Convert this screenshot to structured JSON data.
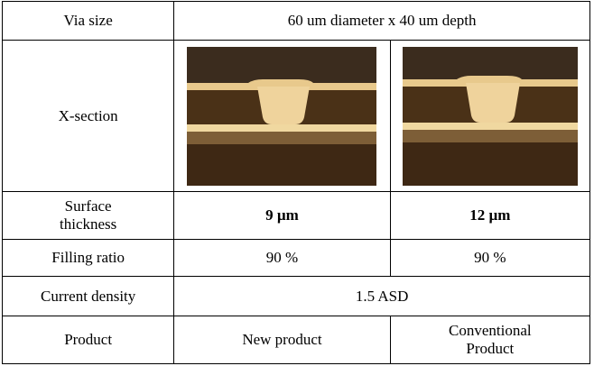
{
  "table": {
    "rows": [
      [
        "Via size",
        "60 um diameter x 40 um depth"
      ],
      [
        "X-section"
      ],
      [
        "Surface thickness",
        "9 µm",
        "12 µm"
      ],
      [
        "Filling ratio",
        "90 %",
        "90 %"
      ],
      [
        "Current density",
        "1.5 ASD"
      ],
      [
        "Product",
        "New product",
        "Conventional Product"
      ]
    ]
  }
}
